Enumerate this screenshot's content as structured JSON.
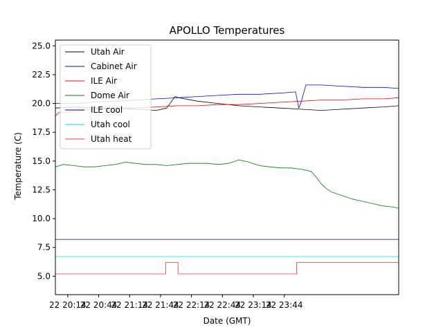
{
  "chart_data": {
    "type": "line",
    "title": "APOLLO Temperatures",
    "xlabel": "Date (GMT)",
    "ylabel": "Temperature (C)",
    "x_unit": "minutes since 22 20:00 GMT",
    "xlim": [
      2,
      335
    ],
    "ylim": [
      3.4,
      25.5
    ],
    "yticks": [
      5.0,
      7.5,
      10.0,
      12.5,
      15.0,
      17.5,
      20.0,
      22.5,
      25.0
    ],
    "ytick_labels": [
      "5.0",
      "7.5",
      "10.0",
      "12.5",
      "15.0",
      "17.5",
      "20.0",
      "22.5",
      "25.0"
    ],
    "xticks": [
      14,
      44,
      74,
      104,
      134,
      164,
      194,
      224
    ],
    "xtick_labels": [
      "22 20:14",
      "22 20:44",
      "22 21:14",
      "22 21:44",
      "22 22:14",
      "22 22:44",
      "22 23:14",
      "22 23:44"
    ],
    "legend_position": "upper-left",
    "series": [
      {
        "name": "Utah Air",
        "color": "#000000",
        "x": [
          2,
          20,
          40,
          60,
          80,
          100,
          110,
          118,
          122,
          140,
          160,
          180,
          200,
          220,
          240,
          260,
          280,
          300,
          320,
          335
        ],
        "y": [
          19.6,
          19.7,
          19.6,
          19.6,
          19.5,
          19.4,
          19.6,
          20.6,
          20.5,
          20.2,
          20.0,
          19.8,
          19.7,
          19.6,
          19.5,
          19.4,
          19.5,
          19.6,
          19.7,
          19.8
        ]
      },
      {
        "name": "Cabinet Air",
        "color": "#0000ff",
        "x": [
          2,
          20,
          40,
          60,
          80,
          100,
          120,
          140,
          160,
          180,
          200,
          220,
          235,
          238,
          240,
          245,
          260,
          280,
          300,
          320,
          335
        ],
        "y": [
          20.0,
          20.0,
          20.1,
          20.2,
          20.3,
          20.4,
          20.5,
          20.6,
          20.7,
          20.8,
          20.8,
          20.9,
          21.0,
          19.6,
          20.0,
          21.6,
          21.6,
          21.5,
          21.4,
          21.4,
          21.3
        ]
      },
      {
        "name": "ILE Air",
        "color": "#ff0000",
        "x": [
          2,
          5,
          20,
          40,
          60,
          80,
          100,
          120,
          140,
          160,
          180,
          200,
          220,
          240,
          260,
          280,
          300,
          320,
          335
        ],
        "y": [
          18.9,
          19.2,
          19.3,
          19.5,
          19.6,
          19.6,
          19.7,
          19.8,
          19.8,
          19.9,
          19.9,
          20.0,
          20.1,
          20.2,
          20.3,
          20.3,
          20.4,
          20.4,
          20.5
        ]
      },
      {
        "name": "Dome Air",
        "color": "#008000",
        "x": [
          2,
          10,
          20,
          30,
          40,
          50,
          60,
          70,
          80,
          90,
          100,
          110,
          120,
          130,
          140,
          150,
          160,
          170,
          180,
          190,
          200,
          210,
          220,
          230,
          240,
          250,
          255,
          260,
          265,
          270,
          280,
          290,
          300,
          310,
          320,
          330,
          335
        ],
        "y": [
          14.5,
          14.7,
          14.6,
          14.5,
          14.5,
          14.6,
          14.7,
          14.9,
          14.8,
          14.7,
          14.7,
          14.6,
          14.7,
          14.8,
          14.8,
          14.8,
          14.7,
          14.8,
          15.1,
          14.9,
          14.6,
          14.5,
          14.4,
          14.4,
          14.3,
          14.1,
          13.6,
          13.0,
          12.6,
          12.3,
          12.0,
          11.7,
          11.5,
          11.3,
          11.1,
          11.0,
          10.9
        ]
      },
      {
        "name": "ILE cool",
        "color": "#000080",
        "x": [
          2,
          335
        ],
        "y": [
          8.2,
          8.2
        ]
      },
      {
        "name": "Utah cool",
        "color": "#00e5e5",
        "x": [
          2,
          335
        ],
        "y": [
          6.7,
          6.7
        ]
      },
      {
        "name": "Utah heat",
        "color": "#ff3030",
        "x": [
          2,
          109,
          109,
          121,
          121,
          236,
          236,
          335
        ],
        "y": [
          5.2,
          5.2,
          6.2,
          6.2,
          5.2,
          5.2,
          6.2,
          6.2
        ]
      }
    ]
  }
}
